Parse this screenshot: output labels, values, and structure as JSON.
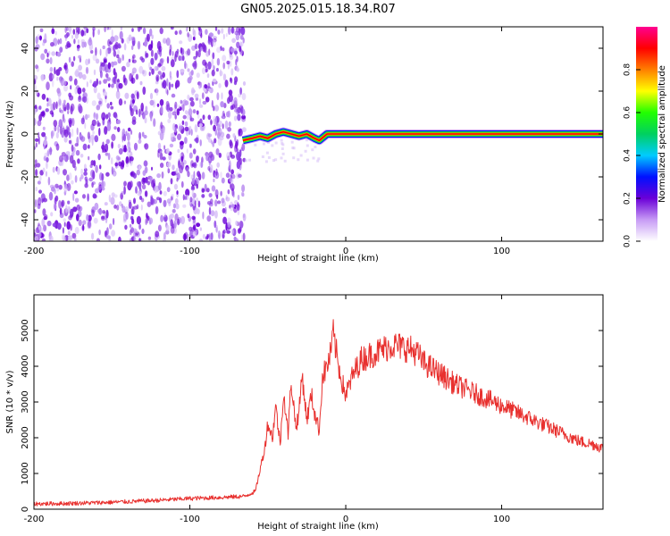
{
  "title": "GN05.2025.015.18.34.R07",
  "chart_data": [
    {
      "type": "heatmap",
      "xlabel": "Height of straight line (km)",
      "ylabel": "Frequency (Hz)",
      "xlim": [
        -200,
        165
      ],
      "ylim": [
        -50,
        50
      ],
      "xticks": [
        -200,
        -100,
        0,
        100
      ],
      "yticks": [
        -40,
        -20,
        0,
        20,
        40
      ],
      "colorbar": {
        "label": "Normalized spectral amplitude",
        "range": [
          0.0,
          1.0
        ],
        "ticks": [
          0.0,
          0.2,
          0.4,
          0.6,
          0.8
        ],
        "colors": [
          "#ffffff",
          "#c79bf5",
          "#6a00d8",
          "#0010ff",
          "#00ccff",
          "#00d060",
          "#22ff00",
          "#ffff00",
          "#ff7f00",
          "#ff0000",
          "#ff0090"
        ]
      },
      "noise_region_x": [
        -200,
        -65
      ],
      "signal_band": [
        {
          "x": -66,
          "y": -3
        },
        {
          "x": -60,
          "y": -2
        },
        {
          "x": -55,
          "y": -1
        },
        {
          "x": -50,
          "y": -2
        },
        {
          "x": -45,
          "y": 0
        },
        {
          "x": -40,
          "y": 1
        },
        {
          "x": -35,
          "y": 0
        },
        {
          "x": -30,
          "y": -1
        },
        {
          "x": -25,
          "y": 0
        },
        {
          "x": -20,
          "y": -2
        },
        {
          "x": -17,
          "y": -3
        },
        {
          "x": -12,
          "y": 0
        },
        {
          "x": -8,
          "y": 0
        },
        {
          "x": 0,
          "y": 0
        },
        {
          "x": 165,
          "y": 0
        }
      ]
    },
    {
      "type": "line",
      "xlabel": "Height of straight line (km)",
      "ylabel": "SNR (10 * v/v)",
      "xlim": [
        -200,
        165
      ],
      "ylim": [
        0,
        6000
      ],
      "xticks": [
        -200,
        -100,
        0,
        100
      ],
      "yticks": [
        0,
        1000,
        2000,
        3000,
        4000,
        5000
      ],
      "color": "#e8312f",
      "series": [
        {
          "x": [
            -200,
            -180,
            -160,
            -140,
            -120,
            -100,
            -80,
            -65,
            -58,
            -55,
            -52,
            -50,
            -47,
            -45,
            -42,
            -40,
            -37,
            -35,
            -32,
            -30,
            -28,
            -25,
            -22,
            -20,
            -17,
            -15,
            -12,
            -10,
            -8,
            -5,
            -2,
            0,
            5,
            10,
            15,
            20,
            25,
            30,
            35,
            40,
            45,
            50,
            60,
            70,
            80,
            90,
            100,
            110,
            120,
            130,
            140,
            150,
            160,
            165
          ],
          "values": [
            150,
            160,
            180,
            210,
            250,
            300,
            330,
            360,
            500,
            1100,
            1700,
            2400,
            2000,
            2900,
            1800,
            3300,
            2100,
            3600,
            2300,
            2700,
            3800,
            2500,
            3200,
            2700,
            2200,
            3700,
            4000,
            4300,
            4900,
            4100,
            3500,
            3200,
            3800,
            4200,
            4300,
            4400,
            4500,
            4600,
            4550,
            4500,
            4400,
            4100,
            3800,
            3500,
            3300,
            3100,
            2900,
            2700,
            2500,
            2300,
            2100,
            1900,
            1800,
            1700
          ]
        }
      ]
    }
  ]
}
